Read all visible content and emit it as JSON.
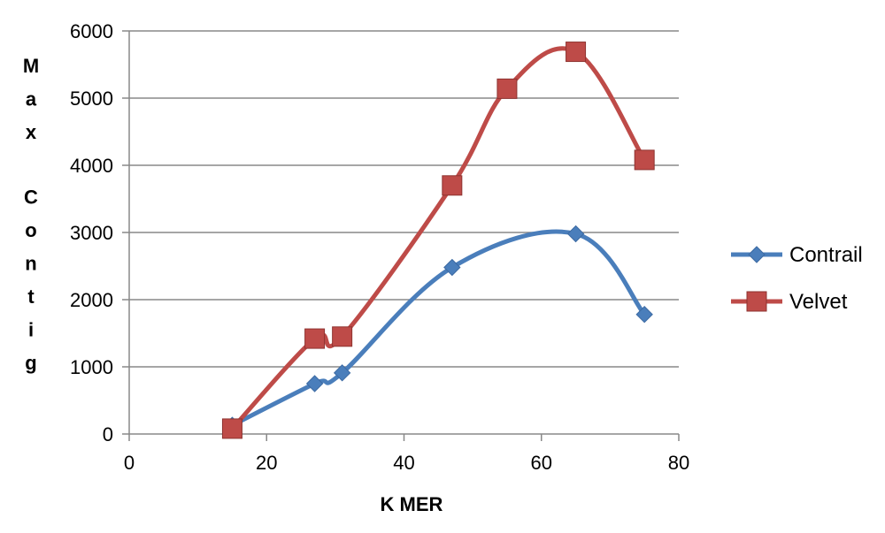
{
  "chart_data": {
    "type": "line",
    "xlabel": "K MER",
    "ylabel": "Max Contig",
    "xlim": [
      0,
      80
    ],
    "ylim": [
      0,
      6000
    ],
    "x_ticks": [
      "0",
      "20",
      "40",
      "60",
      "80"
    ],
    "y_ticks": [
      "0",
      "1000",
      "2000",
      "3000",
      "4000",
      "5000",
      "6000"
    ],
    "grid": "horizontal",
    "smoothed": true,
    "legend_position": "right",
    "series": [
      {
        "name": "Contrail",
        "color": "#4a7ebb",
        "marker": "diamond",
        "points": [
          {
            "x": 15,
            "y": 130
          },
          {
            "x": 27,
            "y": 750
          },
          {
            "x": 31,
            "y": 910
          },
          {
            "x": 47,
            "y": 2480
          },
          {
            "x": 65,
            "y": 2980
          },
          {
            "x": 75,
            "y": 1780
          }
        ]
      },
      {
        "name": "Velvet",
        "color": "#be4b48",
        "marker": "square",
        "points": [
          {
            "x": 15,
            "y": 80
          },
          {
            "x": 27,
            "y": 1420
          },
          {
            "x": 31,
            "y": 1450
          },
          {
            "x": 47,
            "y": 3700
          },
          {
            "x": 55,
            "y": 5140
          },
          {
            "x": 65,
            "y": 5690
          },
          {
            "x": 75,
            "y": 4080
          }
        ]
      }
    ]
  }
}
